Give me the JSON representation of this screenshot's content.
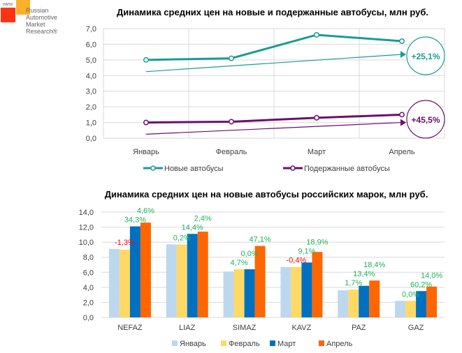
{
  "logo": {
    "small": "НАПИ",
    "lines": [
      "Russian",
      "Automotive",
      "Market",
      "Research®"
    ]
  },
  "chart_data": [
    {
      "type": "line",
      "title": "Динамика средних цен на новые и подержанные автобусы, млн руб.",
      "categories": [
        "Январь",
        "Февраль",
        "Март",
        "Апрель"
      ],
      "ylim": [
        0,
        7
      ],
      "yticks": [
        "0,0",
        "1,0",
        "2,0",
        "3,0",
        "4,0",
        "5,0",
        "6,0",
        "7,0"
      ],
      "grid": true,
      "legend": "bottom",
      "series": [
        {
          "name": "Новые автобусы",
          "values": [
            5.0,
            5.1,
            6.6,
            6.2
          ],
          "color": "#1a9c95",
          "trend_label": "+25,1%",
          "trend": [
            4.25,
            5.35
          ]
        },
        {
          "name": "Подержанные автобусы",
          "values": [
            1.0,
            1.05,
            1.3,
            1.5
          ],
          "color": "#6b0f6e",
          "trend_label": "+45,5%",
          "trend": [
            0.25,
            1.0
          ]
        }
      ]
    },
    {
      "type": "bar",
      "title": "Динамика средних цен на новые автобусы российских марок, млн руб.",
      "categories": [
        "NEFAZ",
        "LIAZ",
        "SIMAZ",
        "KAVZ",
        "PAZ",
        "GAZ"
      ],
      "ylim": [
        0,
        14
      ],
      "yticks": [
        "0,0",
        "2,0",
        "4,0",
        "6,0",
        "8,0",
        "10,0",
        "12,0",
        "14,0"
      ],
      "grid": true,
      "legend": "bottom",
      "series": [
        {
          "name": "Январь",
          "color": "#bdd7ee",
          "values": [
            9.1,
            9.7,
            6.1,
            6.7,
            3.6,
            2.2
          ]
        },
        {
          "name": "Февраль",
          "color": "#ffd966",
          "values": [
            9.0,
            9.7,
            6.4,
            6.7,
            3.7,
            2.2
          ],
          "labels": [
            "-1,3%",
            "0,2%",
            "4,7%",
            "-0,4%",
            "1,7%",
            "0,0%"
          ]
        },
        {
          "name": "Март",
          "color": "#0070c0",
          "values": [
            12.1,
            11.1,
            6.4,
            7.3,
            4.2,
            3.5
          ],
          "labels": [
            "34,3%",
            "14,4%",
            "0,0%",
            "9,1%",
            "13,4%",
            "60,2%"
          ]
        },
        {
          "name": "Апрель",
          "color": "#ff6600",
          "values": [
            12.6,
            11.4,
            9.5,
            8.7,
            4.9,
            4.1
          ],
          "labels": [
            "4,6%",
            "2,4%",
            "47,1%",
            "18,9%",
            "18,4%",
            "14,0%"
          ]
        }
      ],
      "label_colors": {
        "positive": "#1fb35a",
        "negative": "#ff0000"
      }
    }
  ]
}
